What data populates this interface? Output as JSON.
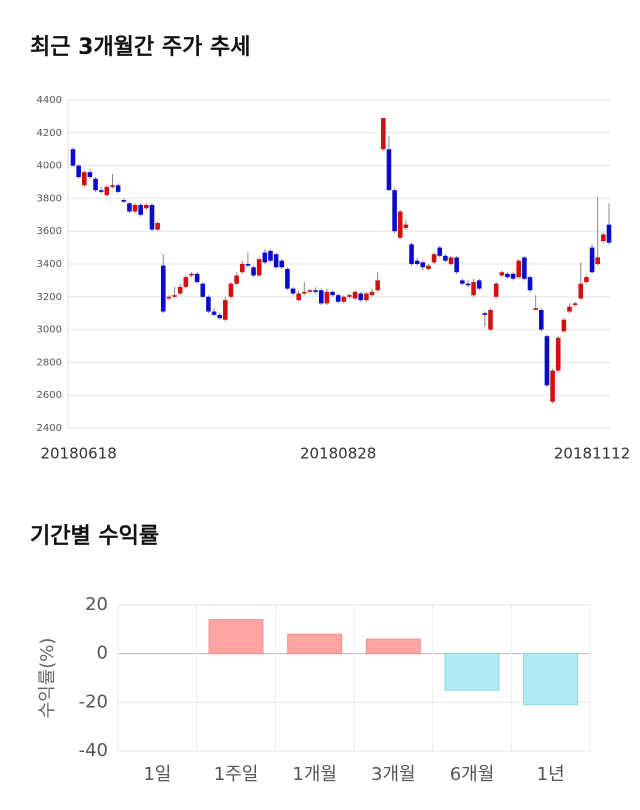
{
  "chart_data": [
    {
      "type": "candlestick",
      "title": "최근 3개월간 주가 추세",
      "categories": [
        null,
        "20180618",
        null,
        null,
        null,
        null,
        null,
        null,
        null,
        null,
        null,
        null,
        null,
        null,
        null,
        null,
        null,
        null,
        null,
        null,
        null,
        null,
        null,
        null,
        null,
        null,
        null,
        null,
        null,
        null,
        null,
        null,
        null,
        null,
        null,
        null,
        null,
        null,
        null,
        null,
        null,
        null,
        null,
        null,
        null,
        null,
        null,
        "20180828",
        null,
        null,
        null,
        null,
        null,
        null,
        null,
        null,
        null,
        null,
        null,
        null,
        null,
        null,
        null,
        null,
        null,
        null,
        null,
        null,
        null,
        null,
        null,
        null,
        null,
        null,
        null,
        null,
        null,
        null,
        null,
        null,
        null,
        null,
        null,
        null,
        null,
        null,
        null,
        null,
        null,
        null,
        null,
        null,
        "20181112",
        null,
        null,
        null
      ],
      "open": [
        4100,
        4000,
        3880,
        3960,
        3920,
        3850,
        3820,
        3870,
        3880,
        3790,
        3770,
        3720,
        3760,
        3740,
        3760,
        3610,
        3390,
        3190,
        3200,
        3220,
        3260,
        3330,
        3340,
        3280,
        3200,
        3110,
        3090,
        3060,
        3200,
        3280,
        3350,
        3400,
        3380,
        3330,
        3470,
        3480,
        3460,
        3420,
        3370,
        3250,
        3180,
        3220,
        3230,
        3240,
        3240,
        3160,
        3230,
        3210,
        3170,
        3200,
        3190,
        3220,
        3180,
        3210,
        3240,
        4100,
        4100,
        3850,
        3560,
        3620,
        3520,
        3420,
        3410,
        3370,
        3410,
        3500,
        3450,
        3400,
        3440,
        3300,
        3280,
        3210,
        3300,
        3100,
        3000,
        3200,
        3330,
        3340,
        3340,
        3320,
        3440,
        3320,
        3120,
        3120,
        2960,
        2560,
        2750,
        2990,
        3110,
        3150,
        3190,
        3290,
        3500,
        3400,
        3540,
        3640
      ],
      "high": [
        4110,
        4010,
        3970,
        3980,
        3930,
        3870,
        3880,
        3950,
        3890,
        3800,
        3780,
        3770,
        3770,
        3770,
        3770,
        3660,
        3460,
        3210,
        3260,
        3280,
        3330,
        3350,
        3350,
        3290,
        3210,
        3130,
        3100,
        3200,
        3290,
        3350,
        3420,
        3470,
        3390,
        3440,
        3490,
        3490,
        3470,
        3430,
        3380,
        3260,
        3240,
        3290,
        3250,
        3260,
        3250,
        3250,
        3240,
        3220,
        3210,
        3220,
        3240,
        3230,
        3230,
        3250,
        3350,
        4290,
        4180,
        3860,
        3730,
        3670,
        3530,
        3440,
        3420,
        3400,
        3470,
        3510,
        3460,
        3450,
        3450,
        3310,
        3300,
        3310,
        3310,
        3110,
        3130,
        3290,
        3360,
        3350,
        3350,
        3430,
        3450,
        3330,
        3210,
        3130,
        2970,
        2760,
        2960,
        3070,
        3160,
        3170,
        3410,
        3330,
        3520,
        3810,
        3590,
        3770
      ],
      "low": [
        3990,
        3920,
        3870,
        3920,
        3840,
        3830,
        3810,
        3860,
        3830,
        3770,
        3710,
        3710,
        3690,
        3730,
        3600,
        3600,
        3100,
        3180,
        3190,
        3210,
        3250,
        3320,
        3280,
        3190,
        3100,
        3080,
        3060,
        3050,
        3190,
        3270,
        3340,
        3380,
        3320,
        3320,
        3400,
        3410,
        3370,
        3370,
        3240,
        3210,
        3170,
        3210,
        3220,
        3220,
        3150,
        3150,
        3200,
        3160,
        3160,
        3190,
        3180,
        3170,
        3170,
        3200,
        3230,
        4090,
        3850,
        3590,
        3550,
        3610,
        3390,
        3390,
        3360,
        3360,
        3400,
        3440,
        3410,
        3390,
        3340,
        3270,
        3260,
        3200,
        3240,
        3020,
        2990,
        3190,
        3320,
        3310,
        3300,
        3310,
        3300,
        3230,
        3120,
        2990,
        2650,
        2550,
        2740,
        2980,
        3100,
        3140,
        3180,
        3280,
        3340,
        3390,
        3530,
        3520
      ],
      "close": [
        4000,
        3930,
        3960,
        3930,
        3850,
        3840,
        3870,
        3880,
        3840,
        3780,
        3720,
        3760,
        3700,
        3760,
        3610,
        3650,
        3110,
        3200,
        3210,
        3260,
        3320,
        3340,
        3290,
        3200,
        3110,
        3090,
        3070,
        3180,
        3280,
        3330,
        3400,
        3390,
        3330,
        3430,
        3410,
        3420,
        3380,
        3380,
        3250,
        3220,
        3220,
        3230,
        3240,
        3230,
        3160,
        3230,
        3210,
        3170,
        3200,
        3210,
        3230,
        3180,
        3220,
        3230,
        3300,
        4290,
        3850,
        3600,
        3720,
        3640,
        3400,
        3400,
        3380,
        3390,
        3460,
        3450,
        3420,
        3440,
        3350,
        3280,
        3270,
        3290,
        3250,
        3090,
        3120,
        3280,
        3350,
        3320,
        3310,
        3420,
        3310,
        3240,
        3130,
        3000,
        2660,
        2750,
        2950,
        3060,
        3140,
        3160,
        3280,
        3320,
        3350,
        3440,
        3580,
        3530
      ],
      "up_color": "#d40f0f",
      "down_color": "#0b0bcf",
      "ylim": [
        2400,
        4400
      ],
      "yticks": [
        2400,
        2600,
        2800,
        3000,
        3200,
        3400,
        3600,
        3800,
        4000,
        4200,
        4400
      ],
      "grid": true
    },
    {
      "type": "bar",
      "title": "기간별 수익률",
      "ylabel": "수익률(%)",
      "categories": [
        "1일",
        "1주일",
        "1개월",
        "3개월",
        "6개월",
        "1년"
      ],
      "values": [
        0,
        14,
        8,
        6,
        -15,
        -21
      ],
      "positive_color": "#ffa3a3",
      "negative_color": "#b3ebf4",
      "ylim": [
        -40,
        20
      ],
      "yticks": [
        -40,
        -20,
        0,
        20
      ],
      "grid": true
    }
  ]
}
